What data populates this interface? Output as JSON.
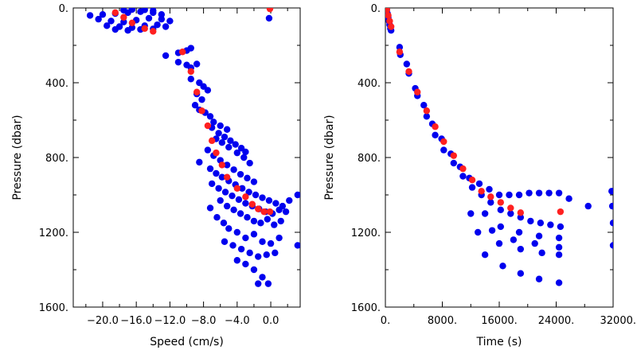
{
  "chart_data": [
    {
      "type": "scatter",
      "xlabel": "Speed (cm/s)",
      "ylabel": "Pressure (dbar)",
      "xlim": [
        -23.5,
        3.5
      ],
      "ylim": [
        0,
        1600
      ],
      "y_inverted": true,
      "x_ticks": [
        "−20.0",
        "−16.0",
        "−12.0",
        "−8.0",
        "−4.0",
        "0.0"
      ],
      "x_tick_values": [
        -20,
        -16,
        -12,
        -8,
        -4,
        0
      ],
      "y_ticks": [
        "0.",
        "400.",
        "800.",
        "1200.",
        "1600."
      ],
      "y_tick_values": [
        0,
        400,
        800,
        1200,
        1600
      ],
      "colors": {
        "scatter": "#0000ee",
        "highlight": "#ff2020"
      },
      "series": [
        {
          "color": "#0000ee",
          "points": [
            [
              -21.5,
              40
            ],
            [
              -20.0,
              35
            ],
            [
              -18.5,
              30
            ],
            [
              -17.0,
              25
            ],
            [
              -15.5,
              20
            ],
            [
              -14.0,
              25
            ],
            [
              -13.0,
              35
            ],
            [
              -20.5,
              60
            ],
            [
              -19.0,
              70
            ],
            [
              -17.5,
              75
            ],
            [
              -16.0,
              65
            ],
            [
              -14.5,
              55
            ],
            [
              -13.0,
              60
            ],
            [
              -12.0,
              70
            ],
            [
              -19.5,
              95
            ],
            [
              -18.0,
              100
            ],
            [
              -16.5,
              105
            ],
            [
              -15.0,
              95
            ],
            [
              -13.5,
              90
            ],
            [
              -12.5,
              100
            ],
            [
              -18.5,
              115
            ],
            [
              -17.0,
              120
            ],
            [
              -15.5,
              115
            ],
            [
              -14.0,
              112
            ],
            [
              -17.5,
              12
            ],
            [
              -16.5,
              8
            ],
            [
              -15.0,
              10
            ],
            [
              -14.0,
              14
            ],
            [
              -0.2,
              55
            ],
            [
              -12.5,
              255
            ],
            [
              -11.0,
              240
            ],
            [
              -10.0,
              228
            ],
            [
              -9.5,
              215
            ],
            [
              -11.0,
              290
            ],
            [
              -10.0,
              305
            ],
            [
              -9.5,
              320
            ],
            [
              -8.8,
              300
            ],
            [
              -9.5,
              380
            ],
            [
              -8.5,
              400
            ],
            [
              -8.0,
              420
            ],
            [
              -7.5,
              440
            ],
            [
              -8.8,
              460
            ],
            [
              -8.2,
              490
            ],
            [
              -9.0,
              520
            ],
            [
              -8.5,
              545
            ],
            [
              -7.8,
              560
            ],
            [
              -7.2,
              580
            ],
            [
              -6.8,
              610
            ],
            [
              -6.0,
              630
            ],
            [
              -5.2,
              650
            ],
            [
              -7.0,
              640
            ],
            [
              -6.2,
              670
            ],
            [
              -5.5,
              690
            ],
            [
              -4.8,
              710
            ],
            [
              -4.2,
              730
            ],
            [
              -3.5,
              750
            ],
            [
              -3.0,
              770
            ],
            [
              -6.5,
              700
            ],
            [
              -5.8,
              720
            ],
            [
              -5.0,
              745
            ],
            [
              -4.0,
              775
            ],
            [
              -3.2,
              800
            ],
            [
              -2.5,
              830
            ],
            [
              -7.5,
              760
            ],
            [
              -6.8,
              790
            ],
            [
              -6.0,
              815
            ],
            [
              -5.2,
              840
            ],
            [
              -4.4,
              865
            ],
            [
              -3.6,
              890
            ],
            [
              -2.8,
              910
            ],
            [
              -2.0,
              930
            ],
            [
              -8.5,
              825
            ],
            [
              -7.2,
              860
            ],
            [
              -6.5,
              885
            ],
            [
              -5.8,
              905
            ],
            [
              -5.0,
              925
            ],
            [
              -4.2,
              945
            ],
            [
              -3.4,
              965
            ],
            [
              -2.6,
              985
            ],
            [
              -1.8,
              1000
            ],
            [
              -1.0,
              1015
            ],
            [
              -0.2,
              1030
            ],
            [
              0.6,
              1045
            ],
            [
              1.4,
              1060
            ],
            [
              2.2,
              1030
            ],
            [
              3.2,
              1000
            ],
            [
              -7.0,
              940
            ],
            [
              -6.2,
              965
            ],
            [
              -5.4,
              985
            ],
            [
              -4.6,
              1005
            ],
            [
              -3.8,
              1025
            ],
            [
              -3.0,
              1045
            ],
            [
              -2.2,
              1060
            ],
            [
              -1.4,
              1075
            ],
            [
              -0.6,
              1090
            ],
            [
              0.2,
              1100
            ],
            [
              1.0,
              1080
            ],
            [
              1.8,
              1090
            ],
            [
              -6.0,
              1030
            ],
            [
              -5.2,
              1060
            ],
            [
              -4.4,
              1080
            ],
            [
              -3.6,
              1100
            ],
            [
              -2.8,
              1120
            ],
            [
              -2.0,
              1140
            ],
            [
              -1.2,
              1150
            ],
            [
              -0.4,
              1130
            ],
            [
              0.4,
              1160
            ],
            [
              1.2,
              1140
            ],
            [
              -7.2,
              1070
            ],
            [
              -6.4,
              1120
            ],
            [
              -5.6,
              1150
            ],
            [
              -5.0,
              1180
            ],
            [
              -4.0,
              1200
            ],
            [
              -3.0,
              1230
            ],
            [
              -2.0,
              1210
            ],
            [
              -1.0,
              1250
            ],
            [
              0.0,
              1260
            ],
            [
              1.0,
              1230
            ],
            [
              -5.5,
              1250
            ],
            [
              -4.5,
              1270
            ],
            [
              -3.5,
              1290
            ],
            [
              -2.5,
              1310
            ],
            [
              -1.5,
              1330
            ],
            [
              -0.5,
              1320
            ],
            [
              0.5,
              1310
            ],
            [
              3.2,
              1270
            ],
            [
              -4.0,
              1350
            ],
            [
              -3.0,
              1370
            ],
            [
              -2.0,
              1400
            ],
            [
              -1.0,
              1440
            ],
            [
              -0.3,
              1475
            ],
            [
              -1.5,
              1475
            ]
          ]
        },
        {
          "color": "#ff2020",
          "points": [
            [
              -18.5,
              25
            ],
            [
              -17.5,
              50
            ],
            [
              -16.5,
              80
            ],
            [
              -15.0,
              110
            ],
            [
              -14.0,
              125
            ],
            [
              -0.1,
              5
            ],
            [
              -10.5,
              235
            ],
            [
              -9.5,
              340
            ],
            [
              -8.8,
              450
            ],
            [
              -8.2,
              550
            ],
            [
              -7.5,
              630
            ],
            [
              -7.0,
              710
            ],
            [
              -6.5,
              775
            ],
            [
              -5.8,
              840
            ],
            [
              -5.2,
              905
            ],
            [
              -4.0,
              965
            ],
            [
              -3.0,
              1010
            ],
            [
              -2.2,
              1050
            ],
            [
              -1.5,
              1075
            ],
            [
              -0.8,
              1090
            ],
            [
              -0.1,
              1090
            ]
          ]
        }
      ]
    },
    {
      "type": "scatter",
      "xlabel": "Time (s)",
      "ylabel": "Pressure (dbar)",
      "xlim": [
        0,
        32000
      ],
      "ylim": [
        0,
        1600
      ],
      "y_inverted": true,
      "x_ticks": [
        "0.",
        "8000.",
        "16000.",
        "24000.",
        "32000."
      ],
      "x_tick_values": [
        0,
        8000,
        16000,
        24000,
        32000
      ],
      "y_ticks": [
        "0.",
        "400.",
        "800.",
        "1200.",
        "1600."
      ],
      "y_tick_values": [
        0,
        400,
        800,
        1200,
        1600
      ],
      "colors": {
        "scatter": "#0000ee",
        "highlight": "#ff2020"
      },
      "series": [
        {
          "color": "#0000ee",
          "points": [
            [
              200,
              10
            ],
            [
              300,
              30
            ],
            [
              400,
              50
            ],
            [
              500,
              70
            ],
            [
              600,
              90
            ],
            [
              700,
              110
            ],
            [
              800,
              120
            ],
            [
              2000,
              210
            ],
            [
              2100,
              250
            ],
            [
              3000,
              300
            ],
            [
              3300,
              350
            ],
            [
              4200,
              430
            ],
            [
              4500,
              470
            ],
            [
              5400,
              520
            ],
            [
              5800,
              580
            ],
            [
              6600,
              620
            ],
            [
              7000,
              680
            ],
            [
              7900,
              700
            ],
            [
              8200,
              760
            ],
            [
              9200,
              780
            ],
            [
              9600,
              830
            ],
            [
              10500,
              850
            ],
            [
              10900,
              900
            ],
            [
              11800,
              910
            ],
            [
              12200,
              960
            ],
            [
              13200,
              940
            ],
            [
              13500,
              1000
            ],
            [
              14600,
              970
            ],
            [
              14800,
              1040
            ],
            [
              16000,
              1000
            ],
            [
              16200,
              1080
            ],
            [
              17400,
              1000
            ],
            [
              17600,
              1100
            ],
            [
              18800,
              1000
            ],
            [
              19000,
              1120
            ],
            [
              20200,
              990
            ],
            [
              20400,
              1140
            ],
            [
              21600,
              990
            ],
            [
              21800,
              1150
            ],
            [
              23000,
              990
            ],
            [
              23200,
              1160
            ],
            [
              24400,
              990
            ],
            [
              24600,
              1170
            ],
            [
              25800,
              1020
            ],
            [
              28500,
              1060
            ],
            [
              31800,
              980
            ],
            [
              31900,
              1060
            ],
            [
              32000,
              1150
            ],
            [
              32000,
              1270
            ],
            [
              14000,
              1100
            ],
            [
              16200,
              1170
            ],
            [
              18800,
              1200
            ],
            [
              21600,
              1220
            ],
            [
              24400,
              1230
            ],
            [
              12000,
              1100
            ],
            [
              15000,
              1190
            ],
            [
              18000,
              1240
            ],
            [
              21000,
              1260
            ],
            [
              24400,
              1280
            ],
            [
              13000,
              1200
            ],
            [
              16000,
              1260
            ],
            [
              19000,
              1290
            ],
            [
              22000,
              1310
            ],
            [
              24400,
              1320
            ],
            [
              14000,
              1320
            ],
            [
              16500,
              1380
            ],
            [
              19000,
              1420
            ],
            [
              21600,
              1450
            ],
            [
              24400,
              1470
            ]
          ]
        },
        {
          "color": "#ff2020",
          "points": [
            [
              200,
              10
            ],
            [
              400,
              40
            ],
            [
              600,
              70
            ],
            [
              800,
              100
            ],
            [
              2000,
              235
            ],
            [
              3300,
              340
            ],
            [
              4500,
              450
            ],
            [
              5800,
              550
            ],
            [
              7000,
              635
            ],
            [
              8200,
              715
            ],
            [
              9600,
              790
            ],
            [
              10900,
              860
            ],
            [
              12200,
              920
            ],
            [
              13500,
              980
            ],
            [
              14800,
              1010
            ],
            [
              16200,
              1040
            ],
            [
              17600,
              1070
            ],
            [
              19000,
              1095
            ],
            [
              24600,
              1090
            ]
          ]
        }
      ]
    }
  ]
}
